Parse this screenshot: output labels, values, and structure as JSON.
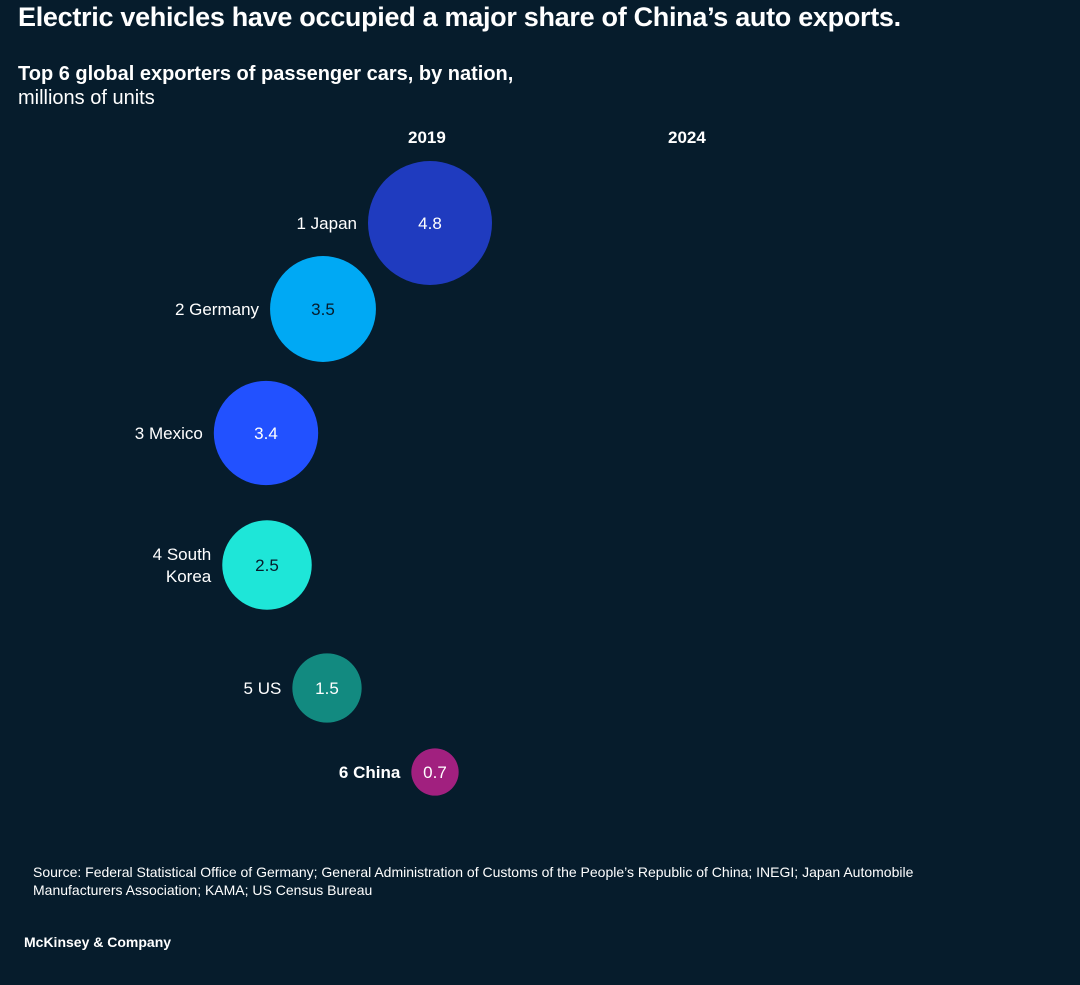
{
  "title": "Electric vehicles have occupied a major share of China’s auto exports.",
  "subtitle_bold": "Top 6 global exporters of passenger cars, by nation,",
  "subtitle_unit": "millions of units",
  "source": "Source: Federal Statistical Office of Germany; General Administration of Customs of the People’s Republic of China; INEGI; Japan Automobile Manufacturers Association; KAMA; US Census Bureau",
  "brand": "McKinsey & Company",
  "chart_data": {
    "type": "bubble",
    "columns": [
      "2019",
      "2024"
    ],
    "unit": "millions of units",
    "series_2019": [
      {
        "rank": 1,
        "label": "1 Japan",
        "label_lines": [
          "1 Japan"
        ],
        "value": 4.8,
        "value_label": "4.8",
        "color": "#1f3bbf",
        "text_color": "#ffffff",
        "bold": false
      },
      {
        "rank": 2,
        "label": "2 Germany",
        "label_lines": [
          "2 Germany"
        ],
        "value": 3.5,
        "value_label": "3.5",
        "color": "#00a9f4",
        "text_color": "#061c2c",
        "bold": false
      },
      {
        "rank": 3,
        "label": "3 Mexico",
        "label_lines": [
          "3 Mexico"
        ],
        "value": 3.4,
        "value_label": "3.4",
        "color": "#2251ff",
        "text_color": "#ffffff",
        "bold": false
      },
      {
        "rank": 4,
        "label": "4 South Korea",
        "label_lines": [
          "4 South",
          "Korea"
        ],
        "value": 2.5,
        "value_label": "2.5",
        "color": "#1ee6d8",
        "text_color": "#061c2c",
        "bold": false
      },
      {
        "rank": 5,
        "label": "5 US",
        "label_lines": [
          "5 US"
        ],
        "value": 1.5,
        "value_label": "1.5",
        "color": "#128a80",
        "text_color": "#ffffff",
        "bold": false
      },
      {
        "rank": 6,
        "label": "6 China",
        "label_lines": [
          "6 China"
        ],
        "value": 0.7,
        "value_label": "0.7",
        "color": "#a1207f",
        "text_color": "#ffffff",
        "bold": true
      }
    ],
    "series_2024": []
  }
}
